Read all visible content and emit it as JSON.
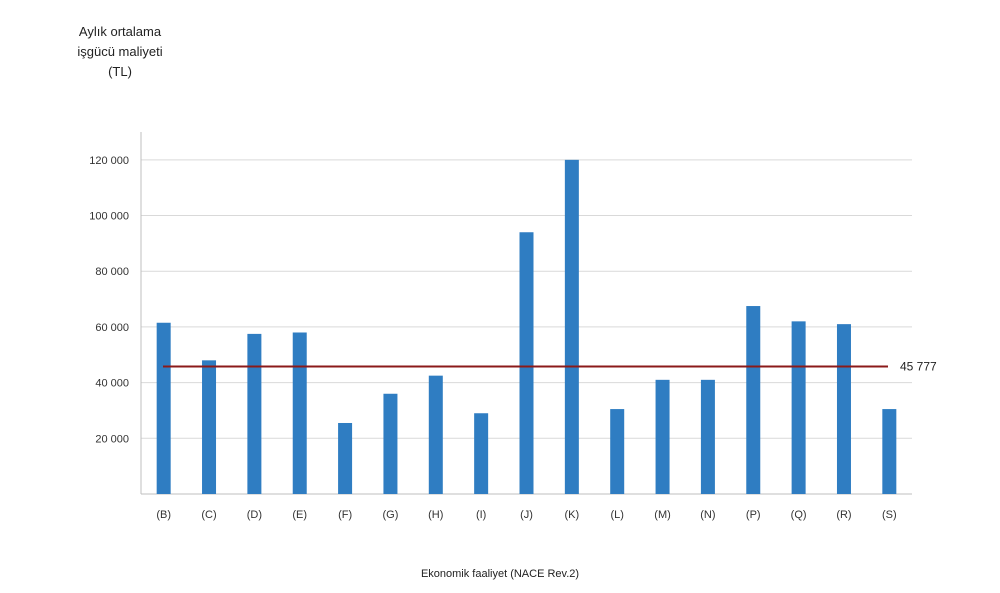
{
  "chart_data": {
    "type": "bar",
    "ylabel_lines": [
      "Aylık ortalama",
      "işgücü maliyeti",
      "(TL)"
    ],
    "xlabel": "Ekonomik faaliyet (NACE Rev.2)",
    "categories": [
      "(B)",
      "(C)",
      "(D)",
      "(E)",
      "(F)",
      "(G)",
      "(H)",
      "(I)",
      "(J)",
      "(K)",
      "(L)",
      "(M)",
      "(N)",
      "(P)",
      "(Q)",
      "(R)",
      "(S)"
    ],
    "values": [
      61500,
      48000,
      57500,
      58000,
      25500,
      36000,
      42500,
      29000,
      94000,
      120000,
      30500,
      41000,
      41000,
      67500,
      62000,
      61000,
      30500
    ],
    "yticks": [
      20000,
      40000,
      60000,
      80000,
      100000,
      120000
    ],
    "ytick_labels": [
      "20 000",
      "40 000",
      "60 000",
      "80 000",
      "100 000",
      "120 000"
    ],
    "ylim": [
      0,
      130000
    ],
    "grid": true,
    "reference_line": {
      "value": 45777,
      "label": "45 777"
    },
    "colors": {
      "bar": "#2f7dc2",
      "reference": "#8b1a1a",
      "grid": "#d9d9d9",
      "axis": "#bfbfbf"
    }
  }
}
